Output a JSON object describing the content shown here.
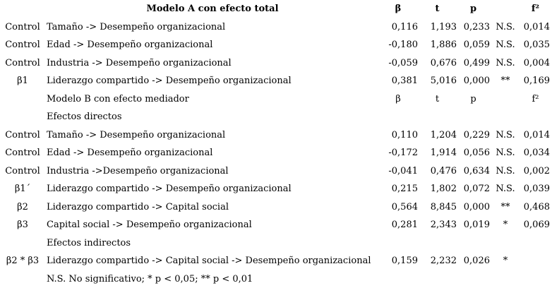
{
  "document": {
    "language": "es",
    "kind": "regression-results-table"
  },
  "columns": {
    "label": "",
    "path": "",
    "beta": "β",
    "t": "t",
    "p": "p",
    "sig": "",
    "f2": "f²"
  },
  "table": {
    "rows": [
      {
        "type": "header-bold",
        "label": "",
        "desc": "Modelo A con efecto total",
        "beta": "β",
        "t": "t",
        "p": "p",
        "sig": "",
        "f2": "f²"
      },
      {
        "type": "data",
        "label": "Control",
        "desc": "Tamaño -> Desempeño organizacional",
        "beta": "0,116",
        "t": "1,193",
        "p": "0,233",
        "sig": "N.S.",
        "f2": "0,014"
      },
      {
        "type": "data",
        "label": "Control",
        "desc": "Edad -> Desempeño organizacional",
        "beta": "-0,180",
        "t": "1,886",
        "p": "0,059",
        "sig": "N.S.",
        "f2": "0,035"
      },
      {
        "type": "data",
        "label": "Control",
        "desc": "Industria -> Desempeño organizacional",
        "beta": "-0,059",
        "t": "0,676",
        "p": "0,499",
        "sig": "N.S.",
        "f2": "0,004"
      },
      {
        "type": "data",
        "label": "β1",
        "desc": "Liderazgo compartido -> Desempeño organizacional",
        "beta": "0,381",
        "t": "5,016",
        "p": "0,000",
        "sig": "**",
        "f2": "0,169"
      },
      {
        "type": "header",
        "label": "",
        "desc": "Modelo B con efecto mediador",
        "beta": "β",
        "t": "t",
        "p": "p",
        "sig": "",
        "f2": "f²"
      },
      {
        "type": "section",
        "label": "",
        "desc": "Efectos directos",
        "beta": "",
        "t": "",
        "p": "",
        "sig": "",
        "f2": ""
      },
      {
        "type": "data",
        "label": "Control",
        "desc": "Tamaño -> Desempeño organizacional",
        "beta": "0,110",
        "t": "1,204",
        "p": "0,229",
        "sig": "N.S.",
        "f2": "0,014"
      },
      {
        "type": "data",
        "label": "Control",
        "desc": "Edad -> Desempeño organizacional",
        "beta": "-0,172",
        "t": "1,914",
        "p": "0,056",
        "sig": "N.S.",
        "f2": "0,034"
      },
      {
        "type": "data",
        "label": "Control",
        "desc": "Industria ->Desempeño organizacional",
        "beta": "-0,041",
        "t": "0,476",
        "p": "0,634",
        "sig": "N.S.",
        "f2": "0,002"
      },
      {
        "type": "data",
        "label": "β1´",
        "desc": "Liderazgo compartido -> Desempeño organizacional",
        "beta": "0,215",
        "t": "1,802",
        "p": "0,072",
        "sig": "N.S.",
        "f2": "0,039"
      },
      {
        "type": "data",
        "label": "β2",
        "desc": "Liderazgo compartido -> Capital social",
        "beta": "0,564",
        "t": "8,845",
        "p": "0,000",
        "sig": "**",
        "f2": "0,468"
      },
      {
        "type": "data",
        "label": "β3",
        "desc": "Capital social -> Desempeño organizacional",
        "beta": "0,281",
        "t": "2,343",
        "p": "0,019",
        "sig": "*",
        "f2": "0,069"
      },
      {
        "type": "section",
        "label": "",
        "desc": "Efectos indirectos",
        "beta": "",
        "t": "",
        "p": "",
        "sig": "",
        "f2": ""
      },
      {
        "type": "data",
        "label": "β2 * β3",
        "desc": "Liderazgo compartido -> Capital social -> Desempeño organizacional",
        "beta": "0,159",
        "t": "2,232",
        "p": "0,026",
        "sig": "*",
        "f2": ""
      },
      {
        "type": "footnote",
        "label": "",
        "desc": "N.S. No significativo; * p < 0,05; ** p < 0,01",
        "beta": "",
        "t": "",
        "p": "",
        "sig": "",
        "f2": ""
      }
    ]
  }
}
